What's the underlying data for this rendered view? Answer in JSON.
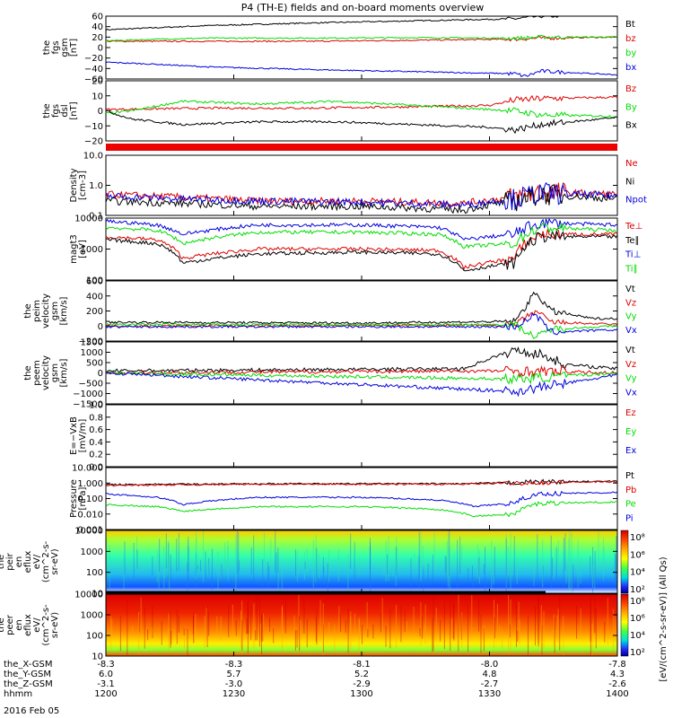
{
  "title": "P4 (TH-E) fields and on-board moments overview",
  "date": "2016 Feb 05",
  "colors": {
    "black": "#000000",
    "red": "#dd0000",
    "green": "#00dd00",
    "blue": "#0000dd"
  },
  "chart_data": {
    "type": "line",
    "x_axis": {
      "row_labels": [
        "the_X-GSM",
        "the_Y-GSM",
        "the_Z-GSM",
        "hhmm"
      ],
      "ticks": [
        {
          "hhmm": "1200",
          "x": "-8.3",
          "y": "6.0",
          "z": "-3.1"
        },
        {
          "hhmm": "1230",
          "x": "-8.3",
          "y": "5.7",
          "z": "-3.0"
        },
        {
          "hhmm": "1300",
          "x": "-8.1",
          "y": "5.2",
          "z": "-2.9"
        },
        {
          "hhmm": "1330",
          "x": "-8.0",
          "y": "4.8",
          "z": "-2.7"
        },
        {
          "hhmm": "1400",
          "x": "-7.8",
          "y": "4.3",
          "z": "-2.6"
        }
      ]
    },
    "panels": [
      {
        "id": "fgs_gsm",
        "ylabel": [
          "the",
          "fgs",
          "gsm",
          "[nT]"
        ],
        "ticks": [
          "60",
          "40",
          "20",
          "0",
          "−20",
          "−40",
          "−60"
        ],
        "legend": [
          {
            "name": "Bt",
            "color": "black"
          },
          {
            "name": "bz",
            "color": "red"
          },
          {
            "name": "by",
            "color": "green"
          },
          {
            "name": "bx",
            "color": "blue"
          }
        ]
      },
      {
        "id": "fgs_dsl",
        "ylabel": [
          "the",
          "fgs",
          "dsl",
          "[nT]"
        ],
        "ticks": [
          "20",
          "10",
          "0",
          "−10",
          "−20"
        ],
        "legend": [
          {
            "name": "Bz",
            "color": "red"
          },
          {
            "name": "By",
            "color": "green"
          },
          {
            "name": "Bx",
            "color": "black"
          }
        ]
      },
      {
        "id": "density",
        "ylabel": [
          "Density",
          "[cm-3]"
        ],
        "ticks": [
          "10.0",
          "1.0",
          "0.1"
        ],
        "legend": [
          {
            "name": "Ne",
            "color": "red"
          },
          {
            "name": "Ni",
            "color": "black"
          },
          {
            "name": "Npot",
            "color": "blue"
          }
        ]
      },
      {
        "id": "temperature",
        "ylabel": [
          "magt3",
          "[eV]"
        ],
        "ticks": [
          "10000",
          "1000",
          "100"
        ],
        "legend": [
          {
            "name": "Te⊥",
            "color": "red"
          },
          {
            "name": "Te∥",
            "color": "black"
          },
          {
            "name": "Ti⊥",
            "color": "blue"
          },
          {
            "name": "Ti∥",
            "color": "green"
          }
        ]
      },
      {
        "id": "peim_velocity",
        "ylabel": [
          "the",
          "peim",
          "velocity",
          "gsm",
          "[km/s]"
        ],
        "ticks": [
          "600",
          "400",
          "200",
          "0",
          "−200"
        ],
        "legend": [
          {
            "name": "Vt",
            "color": "black"
          },
          {
            "name": "Vz",
            "color": "red"
          },
          {
            "name": "Vy",
            "color": "green"
          },
          {
            "name": "Vx",
            "color": "blue"
          }
        ]
      },
      {
        "id": "peem_velocity",
        "ylabel": [
          "the",
          "peem",
          "velocity",
          "gsm",
          "[km/s]"
        ],
        "ticks": [
          "1500",
          "1000",
          "500",
          "0",
          "−500",
          "−1000",
          "−1500"
        ],
        "legend": [
          {
            "name": "Vt",
            "color": "black"
          },
          {
            "name": "Vz",
            "color": "red"
          },
          {
            "name": "Vy",
            "color": "green"
          },
          {
            "name": "Vx",
            "color": "blue"
          }
        ]
      },
      {
        "id": "efield",
        "ylabel": [
          "E=−VxB",
          "[mV/m]"
        ],
        "ticks": [
          "1.0",
          "0.8",
          "0.6",
          "0.4",
          "0.2",
          "0.0"
        ],
        "legend": [
          {
            "name": "Ez",
            "color": "red"
          },
          {
            "name": "Ey",
            "color": "green"
          },
          {
            "name": "Ex",
            "color": "blue"
          }
        ]
      },
      {
        "id": "pressure",
        "ylabel": [
          "Pressure",
          "[nPa]"
        ],
        "ticks": [
          "10.000",
          "1.000",
          "0.100",
          "0.010",
          "0.001"
        ],
        "legend": [
          {
            "name": "Pt",
            "color": "black"
          },
          {
            "name": "Pb",
            "color": "red"
          },
          {
            "name": "Pe",
            "color": "green"
          },
          {
            "name": "Pi",
            "color": "blue"
          }
        ]
      },
      {
        "id": "peir_spec",
        "ylabel": [
          "the",
          "peir",
          "en",
          "eflux",
          "eV/",
          "(cm^2-s-",
          "sr-eV)"
        ],
        "ticks": [
          "10000",
          "1000",
          "100",
          "10"
        ]
      },
      {
        "id": "peer_spec",
        "ylabel": [
          "the",
          "peer",
          "en",
          "eflux",
          "eV/",
          "(cm^2-s-",
          "sr-eV)"
        ],
        "ticks": [
          "10000",
          "1000",
          "100",
          "10"
        ]
      }
    ],
    "colorbar": {
      "label": "[eV/(cm^2-s-sr-eV)] (All Qs)",
      "top_ticks": [
        "10⁸",
        "10⁶",
        "10⁴",
        "10²"
      ],
      "bottom_ticks": [
        "10⁸",
        "10⁶",
        "10⁴",
        "10²"
      ]
    },
    "series_approx": {
      "fgs_gsm": {
        "Bt": [
          [
            0,
            34
          ],
          [
            0.1,
            38
          ],
          [
            0.2,
            42
          ],
          [
            0.4,
            47
          ],
          [
            0.6,
            51
          ],
          [
            0.8,
            55
          ],
          [
            0.85,
            60
          ],
          [
            1,
            62
          ]
        ],
        "bz": [
          [
            0,
            12
          ],
          [
            0.2,
            12
          ],
          [
            0.4,
            12
          ],
          [
            0.6,
            14
          ],
          [
            0.8,
            16
          ],
          [
            0.85,
            18
          ],
          [
            1,
            20
          ]
        ],
        "by": [
          [
            0,
            13
          ],
          [
            0.1,
            16
          ],
          [
            0.2,
            18
          ],
          [
            0.4,
            18
          ],
          [
            0.6,
            19
          ],
          [
            0.8,
            18
          ],
          [
            0.85,
            20
          ],
          [
            1,
            20
          ]
        ],
        "bx": [
          [
            0,
            -28
          ],
          [
            0.1,
            -32
          ],
          [
            0.2,
            -37
          ],
          [
            0.4,
            -42
          ],
          [
            0.6,
            -46
          ],
          [
            0.8,
            -50
          ],
          [
            0.82,
            -55
          ],
          [
            0.85,
            -45
          ],
          [
            1,
            -52
          ]
        ]
      },
      "fgs_dsl": {
        "Bz": [
          [
            0,
            1
          ],
          [
            0.2,
            2
          ],
          [
            0.4,
            2
          ],
          [
            0.6,
            3
          ],
          [
            0.75,
            4
          ],
          [
            0.8,
            8
          ],
          [
            0.85,
            9
          ],
          [
            1,
            10
          ]
        ],
        "By": [
          [
            0,
            -2
          ],
          [
            0.05,
            0
          ],
          [
            0.15,
            7
          ],
          [
            0.3,
            5
          ],
          [
            0.45,
            7
          ],
          [
            0.6,
            4
          ],
          [
            0.75,
            1
          ],
          [
            0.8,
            0
          ],
          [
            0.85,
            -3
          ],
          [
            1,
            -4
          ]
        ],
        "Bx": [
          [
            0,
            0
          ],
          [
            0.05,
            -6
          ],
          [
            0.15,
            -10
          ],
          [
            0.3,
            -8
          ],
          [
            0.45,
            -8
          ],
          [
            0.6,
            -10
          ],
          [
            0.75,
            -12
          ],
          [
            0.8,
            -14
          ],
          [
            0.85,
            -10
          ],
          [
            1,
            -5
          ]
        ]
      },
      "density": {
        "Ne": [
          [
            0,
            0.5
          ],
          [
            0.15,
            0.4
          ],
          [
            0.3,
            0.3
          ],
          [
            0.5,
            0.3
          ],
          [
            0.7,
            0.25
          ],
          [
            0.8,
            0.4
          ],
          [
            0.85,
            0.6
          ],
          [
            1,
            0.5
          ]
        ],
        "Ni": [
          [
            0,
            0.3
          ],
          [
            0.15,
            0.25
          ],
          [
            0.3,
            0.2
          ],
          [
            0.5,
            0.2
          ],
          [
            0.7,
            0.15
          ],
          [
            0.8,
            0.3
          ],
          [
            0.85,
            0.5
          ],
          [
            1,
            0.35
          ]
        ],
        "Npot": [
          [
            0,
            0.45
          ],
          [
            0.15,
            0.35
          ],
          [
            0.3,
            0.3
          ],
          [
            0.5,
            0.28
          ],
          [
            0.7,
            0.22
          ],
          [
            0.8,
            0.35
          ],
          [
            0.85,
            0.55
          ],
          [
            1,
            0.45
          ]
        ]
      },
      "temperature": {
        "Ti⊥": [
          [
            0,
            8000
          ],
          [
            0.1,
            6000
          ],
          [
            0.15,
            3000
          ],
          [
            0.3,
            6000
          ],
          [
            0.5,
            6000
          ],
          [
            0.65,
            5000
          ],
          [
            0.7,
            2000
          ],
          [
            0.8,
            3000
          ],
          [
            0.85,
            7000
          ],
          [
            1,
            6000
          ]
        ],
        "Ti∥": [
          [
            0,
            5000
          ],
          [
            0.1,
            4000
          ],
          [
            0.15,
            1500
          ],
          [
            0.3,
            3500
          ],
          [
            0.5,
            3500
          ],
          [
            0.65,
            3000
          ],
          [
            0.7,
            1200
          ],
          [
            0.8,
            1500
          ],
          [
            0.85,
            5000
          ],
          [
            1,
            4000
          ]
        ],
        "Te⊥": [
          [
            0,
            2500
          ],
          [
            0.1,
            2000
          ],
          [
            0.15,
            500
          ],
          [
            0.3,
            1000
          ],
          [
            0.5,
            1000
          ],
          [
            0.65,
            900
          ],
          [
            0.7,
            250
          ],
          [
            0.8,
            500
          ],
          [
            0.85,
            3000
          ],
          [
            1,
            3000
          ]
        ],
        "Te∥": [
          [
            0,
            2000
          ],
          [
            0.1,
            1500
          ],
          [
            0.15,
            350
          ],
          [
            0.3,
            700
          ],
          [
            0.5,
            800
          ],
          [
            0.65,
            700
          ],
          [
            0.7,
            200
          ],
          [
            0.8,
            350
          ],
          [
            0.85,
            2500
          ],
          [
            1,
            2500
          ]
        ]
      },
      "peim_velocity": {
        "Vt": [
          [
            0,
            50
          ],
          [
            0.5,
            40
          ],
          [
            0.8,
            60
          ],
          [
            0.84,
            450
          ],
          [
            0.87,
            200
          ],
          [
            0.95,
            100
          ],
          [
            1,
            100
          ]
        ],
        "Vz": [
          [
            0,
            0
          ],
          [
            0.8,
            10
          ],
          [
            0.84,
            200
          ],
          [
            0.87,
            50
          ],
          [
            1,
            20
          ]
        ],
        "Vy": [
          [
            0,
            20
          ],
          [
            0.8,
            20
          ],
          [
            0.84,
            -150
          ],
          [
            0.87,
            -40
          ],
          [
            1,
            0
          ]
        ],
        "Vx": [
          [
            0,
            -10
          ],
          [
            0.8,
            -10
          ],
          [
            0.84,
            150
          ],
          [
            0.87,
            -80
          ],
          [
            1,
            -50
          ]
        ]
      },
      "peem_velocity": {
        "Vt": [
          [
            0,
            100
          ],
          [
            0.7,
            200
          ],
          [
            0.75,
            700
          ],
          [
            0.8,
            1100
          ],
          [
            0.85,
            900
          ],
          [
            0.9,
            400
          ],
          [
            1,
            200
          ]
        ],
        "Vz": [
          [
            0,
            0
          ],
          [
            0.8,
            100
          ],
          [
            1,
            0
          ]
        ],
        "Vy": [
          [
            0,
            0
          ],
          [
            0.8,
            -300
          ],
          [
            1,
            0
          ]
        ],
        "Vx": [
          [
            0,
            0
          ],
          [
            0.8,
            -900
          ],
          [
            1,
            -100
          ]
        ]
      },
      "pressure": {
        "Pt": [
          [
            0,
            0.8
          ],
          [
            0.3,
            0.9
          ],
          [
            0.7,
            0.9
          ],
          [
            0.85,
            1.2
          ],
          [
            1,
            1.3
          ]
        ],
        "Pb": [
          [
            0,
            0.7
          ],
          [
            0.3,
            0.85
          ],
          [
            0.7,
            0.85
          ],
          [
            0.85,
            1.1
          ],
          [
            1,
            1.2
          ]
        ],
        "Pi": [
          [
            0,
            0.2
          ],
          [
            0.1,
            0.12
          ],
          [
            0.15,
            0.04
          ],
          [
            0.3,
            0.12
          ],
          [
            0.5,
            0.12
          ],
          [
            0.65,
            0.08
          ],
          [
            0.72,
            0.03
          ],
          [
            0.8,
            0.05
          ],
          [
            0.85,
            0.2
          ],
          [
            1,
            0.25
          ]
        ],
        "Pe": [
          [
            0,
            0.04
          ],
          [
            0.1,
            0.03
          ],
          [
            0.15,
            0.015
          ],
          [
            0.3,
            0.03
          ],
          [
            0.5,
            0.03
          ],
          [
            0.65,
            0.02
          ],
          [
            0.72,
            0.007
          ],
          [
            0.8,
            0.01
          ],
          [
            0.85,
            0.05
          ],
          [
            1,
            0.06
          ]
        ]
      }
    }
  }
}
